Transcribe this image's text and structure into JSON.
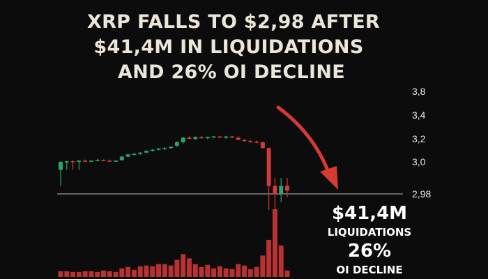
{
  "headline": {
    "line1": "XRP FALLS TO $2,98 AFTER",
    "line2": "$41,4M IN LIQUIDATIONS",
    "line3": "AND 26% OI DECLINE"
  },
  "callout": {
    "liquidations_value": "$41,4M",
    "liquidations_label": "LIQUIDATIONS",
    "oi_value": "26%",
    "oi_label": "OI DECLINE"
  },
  "colors": {
    "up": "#2fa36b",
    "down": "#d23a3a",
    "volume": "#b83232",
    "arrow": "#d73a34",
    "line": "#9a9a9a",
    "background": "#0c0c0c"
  },
  "chart_data": {
    "type": "candlestick",
    "title": "",
    "xlabel": "",
    "ylabel": "",
    "y_tick_labels": [
      "3,8",
      "3,4",
      "3,2",
      "3,0",
      "2,98"
    ],
    "y_tick_values": [
      3.8,
      3.4,
      3.2,
      3.0,
      2.98
    ],
    "reference_line": 2.98,
    "candles": [
      {
        "o": 2.995,
        "h": 3.005,
        "l": 2.985,
        "c": 3.0
      },
      {
        "o": 3.0,
        "h": 3.01,
        "l": 2.995,
        "c": 3.005
      },
      {
        "o": 3.005,
        "h": 3.015,
        "l": 2.995,
        "c": 3.0
      },
      {
        "o": 3.0,
        "h": 3.015,
        "l": 2.995,
        "c": 3.01
      },
      {
        "o": 3.01,
        "h": 3.02,
        "l": 3.0,
        "c": 3.005
      },
      {
        "o": 3.005,
        "h": 3.015,
        "l": 3.0,
        "c": 3.01
      },
      {
        "o": 3.01,
        "h": 3.025,
        "l": 3.005,
        "c": 3.015
      },
      {
        "o": 3.015,
        "h": 3.02,
        "l": 3.005,
        "c": 3.01
      },
      {
        "o": 3.01,
        "h": 3.02,
        "l": 3.0,
        "c": 3.005
      },
      {
        "o": 3.005,
        "h": 3.015,
        "l": 3.0,
        "c": 3.01
      },
      {
        "o": 3.015,
        "h": 3.05,
        "l": 3.01,
        "c": 3.045
      },
      {
        "o": 3.045,
        "h": 3.07,
        "l": 3.04,
        "c": 3.065
      },
      {
        "o": 3.065,
        "h": 3.075,
        "l": 3.055,
        "c": 3.07
      },
      {
        "o": 3.07,
        "h": 3.085,
        "l": 3.06,
        "c": 3.08
      },
      {
        "o": 3.08,
        "h": 3.1,
        "l": 3.075,
        "c": 3.095
      },
      {
        "o": 3.095,
        "h": 3.11,
        "l": 3.09,
        "c": 3.105
      },
      {
        "o": 3.105,
        "h": 3.12,
        "l": 3.1,
        "c": 3.115
      },
      {
        "o": 3.115,
        "h": 3.13,
        "l": 3.105,
        "c": 3.12
      },
      {
        "o": 3.12,
        "h": 3.135,
        "l": 3.11,
        "c": 3.13
      },
      {
        "o": 3.14,
        "h": 3.18,
        "l": 3.13,
        "c": 3.17
      },
      {
        "o": 3.17,
        "h": 3.215,
        "l": 3.16,
        "c": 3.21
      },
      {
        "o": 3.21,
        "h": 3.225,
        "l": 3.195,
        "c": 3.2
      },
      {
        "o": 3.2,
        "h": 3.22,
        "l": 3.19,
        "c": 3.215
      },
      {
        "o": 3.215,
        "h": 3.225,
        "l": 3.2,
        "c": 3.205
      },
      {
        "o": 3.205,
        "h": 3.22,
        "l": 3.195,
        "c": 3.215
      },
      {
        "o": 3.215,
        "h": 3.225,
        "l": 3.205,
        "c": 3.22
      },
      {
        "o": 3.22,
        "h": 3.225,
        "l": 3.205,
        "c": 3.21
      },
      {
        "o": 3.21,
        "h": 3.225,
        "l": 3.2,
        "c": 3.22
      },
      {
        "o": 3.22,
        "h": 3.225,
        "l": 3.205,
        "c": 3.21
      },
      {
        "o": 3.21,
        "h": 3.22,
        "l": 3.19,
        "c": 3.19
      },
      {
        "o": 3.19,
        "h": 3.2,
        "l": 3.175,
        "c": 3.18
      },
      {
        "o": 3.18,
        "h": 3.19,
        "l": 3.165,
        "c": 3.175
      },
      {
        "o": 3.175,
        "h": 3.185,
        "l": 3.16,
        "c": 3.17
      },
      {
        "o": 3.17,
        "h": 3.175,
        "l": 3.115,
        "c": 3.12
      },
      {
        "o": 3.12,
        "h": 3.125,
        "l": 2.97,
        "c": 2.985
      },
      {
        "o": 2.985,
        "h": 2.99,
        "l": 2.97,
        "c": 2.98
      },
      {
        "o": 2.98,
        "h": 2.99,
        "l": 2.975,
        "c": 2.985
      },
      {
        "o": 2.985,
        "h": 2.99,
        "l": 2.978,
        "c": 2.982
      }
    ],
    "volume": [
      8,
      8,
      7,
      7,
      8,
      8,
      7,
      9,
      8,
      7,
      12,
      14,
      10,
      15,
      16,
      15,
      18,
      18,
      16,
      24,
      32,
      26,
      18,
      14,
      17,
      12,
      15,
      12,
      11,
      18,
      16,
      11,
      14,
      30,
      52,
      95,
      44,
      9
    ]
  }
}
